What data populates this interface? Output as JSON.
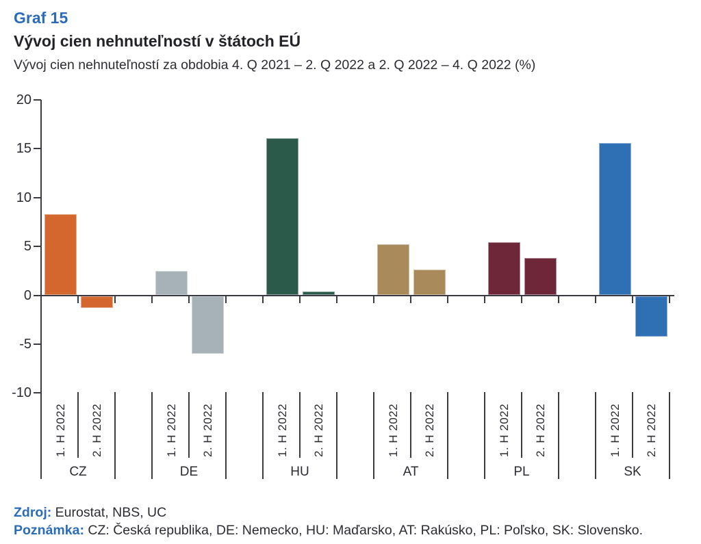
{
  "header": {
    "graf_label": "Graf 15",
    "title": "Vývoj cien nehnuteľností v štátoch EÚ",
    "subtitle": "Vývoj cien nehnuteľností za obdobia 4. Q 2021 – 2. Q 2022 a 2. Q 2022 – 4. Q 2022 (%)"
  },
  "chart_data": {
    "type": "bar",
    "title": "Vývoj cien nehnuteľností v štátoch EÚ",
    "unit": "%",
    "ylim": [
      -10,
      20
    ],
    "yticks": [
      20,
      15,
      10,
      5,
      0,
      -5,
      -10
    ],
    "grid": false,
    "legend": "none",
    "categories": [
      "CZ",
      "DE",
      "HU",
      "AT",
      "PL",
      "SK"
    ],
    "series_labels": [
      "1. H 2022",
      "2. H 2022"
    ],
    "series": [
      {
        "name": "1. H 2022",
        "values": [
          8.3,
          2.5,
          16.1,
          5.2,
          5.4,
          15.6
        ]
      },
      {
        "name": "2. H 2022",
        "values": [
          -1.2,
          -5.9,
          0.4,
          2.6,
          3.8,
          -4.2
        ]
      }
    ],
    "category_colors": {
      "CZ": "#d4672e",
      "DE": "#a7b2b6",
      "HU": "#2c5a4a",
      "AT": "#a98a5a",
      "PL": "#6e2739",
      "SK": "#2f6fb4"
    }
  },
  "footer": {
    "zdroj_label": "Zdroj:",
    "zdroj_text": " Eurostat, NBS, UC",
    "poznamka_label": "Poznámka:",
    "poznamka_text": " CZ: Česká republika, DE: Nemecko, HU: Maďarsko, AT: Rakúsko, PL: Poľsko, SK: Slovensko."
  },
  "colors": {
    "accent_blue": "#2b6cba",
    "text_dark": "#2b2b33",
    "axis": "#3a3a42"
  }
}
